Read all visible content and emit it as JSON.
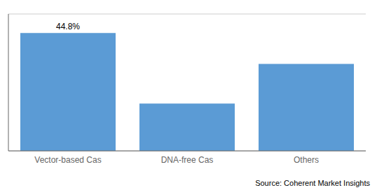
{
  "chart_data": {
    "type": "bar",
    "categories": [
      "Vector-based Cas",
      "DNA-free Cas",
      "Others"
    ],
    "values": [
      44.8,
      18.0,
      33.0
    ],
    "color": "#5B9BD5",
    "ylim": [
      0,
      52
    ],
    "yticks": [
      0,
      10,
      20,
      30,
      40,
      50
    ],
    "grid": true,
    "tick_labels": "x",
    "annotations": [
      {
        "text": "44.8%",
        "category": "Vector-based Cas"
      },
      {
        "text": "Source: Coherent Market Insights"
      }
    ]
  }
}
